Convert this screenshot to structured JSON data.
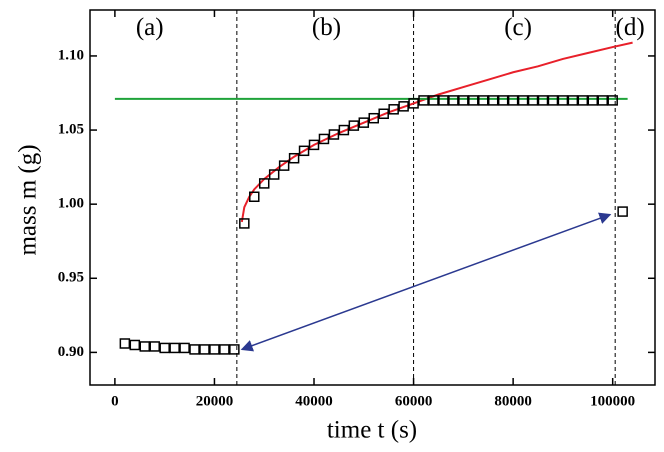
{
  "chart_data": {
    "type": "scatter",
    "xlabel": "time t (s)",
    "ylabel": "mass m (g)",
    "xlim": [
      -5000,
      108500
    ],
    "ylim": [
      0.878,
      1.131
    ],
    "xticks": [
      0,
      20000,
      40000,
      60000,
      80000,
      100000
    ],
    "yticks": [
      {
        "value": 0.9,
        "label": "0.90"
      },
      {
        "value": 0.95,
        "label": "0.95"
      },
      {
        "value": 1.0,
        "label": "1.00"
      },
      {
        "value": 1.05,
        "label": "1.05"
      },
      {
        "value": 1.1,
        "label": "1.10"
      }
    ],
    "series": [
      {
        "mode": "markers",
        "marker": "square",
        "color": "#000000",
        "x": [
          2000,
          4000,
          6000,
          8000,
          10000,
          12000,
          14000,
          16000,
          18000,
          20000,
          22000,
          24000,
          26000,
          28000,
          30000,
          32000,
          34000,
          36000,
          38000,
          40000,
          42000,
          44000,
          46000,
          48000,
          50000,
          52000,
          54000,
          56000,
          58000,
          60000,
          62000,
          64000,
          66000,
          68000,
          70000,
          72000,
          74000,
          76000,
          78000,
          80000,
          82000,
          84000,
          86000,
          88000,
          90000,
          92000,
          94000,
          96000,
          98000,
          100000,
          102000
        ],
        "values": [
          0.906,
          0.905,
          0.904,
          0.904,
          0.903,
          0.903,
          0.903,
          0.902,
          0.902,
          0.902,
          0.902,
          0.902,
          0.987,
          1.005,
          1.014,
          1.02,
          1.026,
          1.031,
          1.036,
          1.04,
          1.044,
          1.047,
          1.05,
          1.053,
          1.055,
          1.058,
          1.061,
          1.064,
          1.066,
          1.068,
          1.07,
          1.07,
          1.07,
          1.07,
          1.07,
          1.07,
          1.07,
          1.07,
          1.07,
          1.07,
          1.07,
          1.07,
          1.07,
          1.07,
          1.07,
          1.07,
          1.07,
          1.07,
          1.07,
          1.07,
          0.995
        ]
      },
      {
        "mode": "line",
        "color": "#e8202a",
        "x": [
          25500,
          26000,
          27000,
          28000,
          30000,
          33000,
          36000,
          40000,
          45000,
          50000,
          55000,
          60000,
          65000,
          70000,
          75000,
          80000,
          85000,
          90000,
          95000,
          100000,
          104000
        ],
        "values": [
          0.988,
          0.998,
          1.005,
          1.01,
          1.017,
          1.025,
          1.032,
          1.04,
          1.048,
          1.055,
          1.062,
          1.068,
          1.074,
          1.079,
          1.084,
          1.089,
          1.093,
          1.098,
          1.102,
          1.106,
          1.109
        ]
      },
      {
        "mode": "line",
        "color": "#1fa33a",
        "x": [
          0,
          103000
        ],
        "values": [
          1.071,
          1.071
        ]
      }
    ],
    "vlines": [
      24500,
      60000,
      100500
    ],
    "arrow": {
      "color": "#2b3990",
      "x": [
        25500,
        99500
      ],
      "y": [
        0.902,
        0.993
      ]
    },
    "annotations": [
      {
        "text": "(a)",
        "x": 7000,
        "y": 1.118
      },
      {
        "text": "(b)",
        "x": 42500,
        "y": 1.118
      },
      {
        "text": "(c)",
        "x": 81000,
        "y": 1.118
      },
      {
        "text": "(d)",
        "x": 103500,
        "y": 1.118
      }
    ]
  }
}
